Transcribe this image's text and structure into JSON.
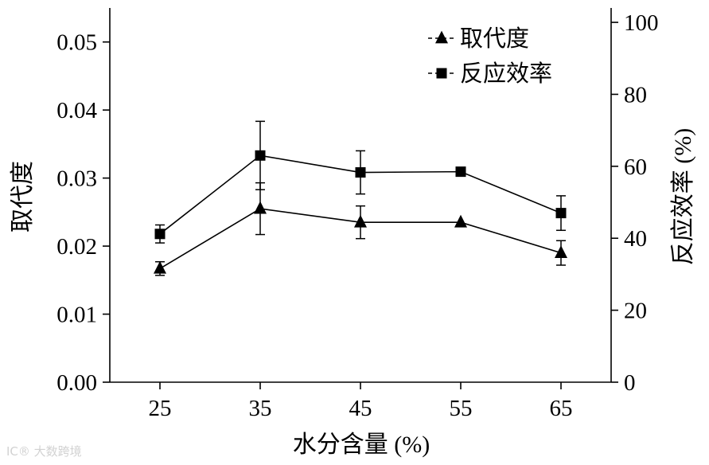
{
  "chart_data": {
    "type": "line",
    "title": "",
    "xlabel": "水分含量 (%)",
    "ylabel_left": "取代度",
    "ylabel_right": "反应效率 (%)",
    "x": [
      25,
      35,
      45,
      55,
      65
    ],
    "x_ticks": [
      "25",
      "35",
      "45",
      "55",
      "65"
    ],
    "xlim": [
      20,
      70
    ],
    "ylim_left": [
      0,
      0.055
    ],
    "ylim_right": [
      0,
      104
    ],
    "left_ticks": [
      0,
      0.01,
      0.02,
      0.03,
      0.04,
      0.05
    ],
    "left_tick_labels": [
      "0.00",
      "0.01",
      "0.02",
      "0.03",
      "0.04",
      "0.05"
    ],
    "right_ticks": [
      0,
      20,
      40,
      60,
      80,
      100
    ],
    "right_tick_labels": [
      "0",
      "20",
      "40",
      "60",
      "80",
      "100"
    ],
    "grid": false,
    "legend_position": "top-right",
    "series": [
      {
        "name": "取代度",
        "axis": "left",
        "marker": "triangle",
        "values": [
          0.0167,
          0.0255,
          0.0235,
          0.0235,
          0.019
        ],
        "errors": [
          0.001,
          0.0038,
          0.0024,
          0.0,
          0.0018
        ]
      },
      {
        "name": "反应效率",
        "axis": "right",
        "marker": "square",
        "values": [
          41.2,
          63.0,
          58.3,
          58.5,
          47.0
        ],
        "errors": [
          2.5,
          9.5,
          6.0,
          0.0,
          4.8
        ]
      }
    ]
  },
  "watermark": "IC® 大数跨境"
}
